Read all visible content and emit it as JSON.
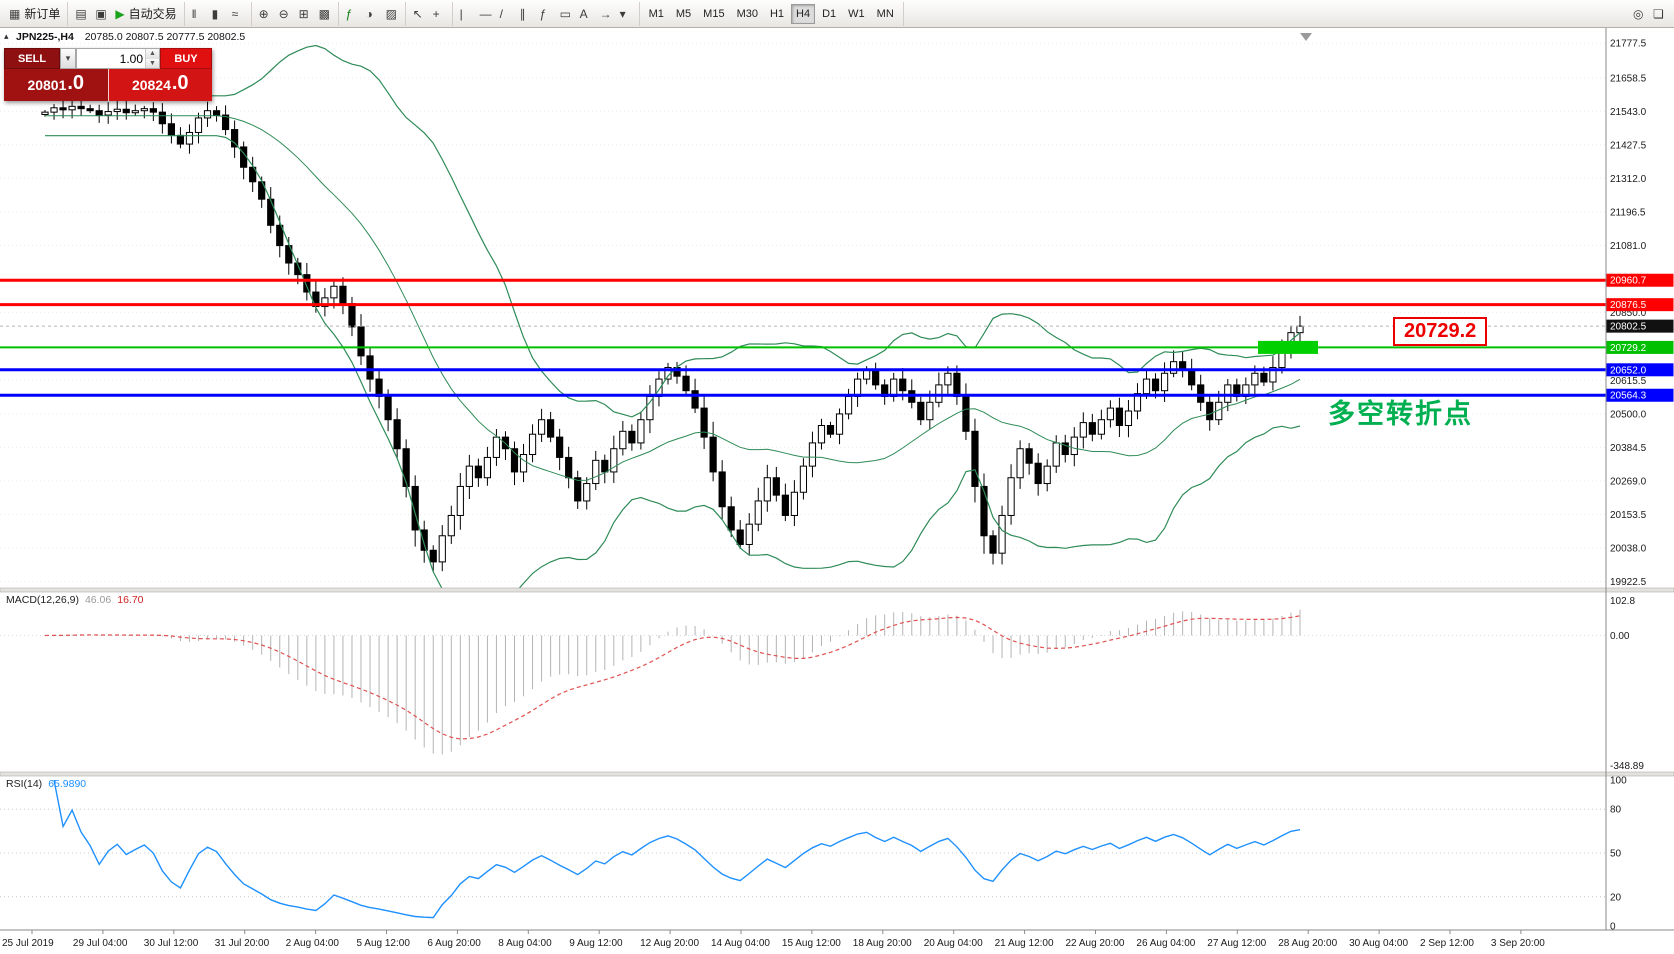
{
  "toolbar": {
    "groups": [
      {
        "name": "order-group",
        "items": [
          {
            "name": "new-order-button",
            "glyph": "▦",
            "label": "新订单"
          }
        ]
      },
      {
        "name": "app-group",
        "items": [
          {
            "name": "charts-icon",
            "glyph": "▤"
          },
          {
            "name": "profiles-icon",
            "glyph": "▣"
          },
          {
            "name": "autotrading-button",
            "glyph": "▶",
            "glyph_color": "#1aa31a",
            "label": "自动交易"
          }
        ]
      },
      {
        "name": "chart-type-group",
        "items": [
          {
            "name": "bar-chart-icon",
            "glyph": "‖"
          },
          {
            "name": "candlestick-chart-icon",
            "glyph": "▮"
          },
          {
            "name": "line-chart-icon",
            "glyph": "≈"
          }
        ]
      },
      {
        "name": "zoom-group",
        "items": [
          {
            "name": "zoom-in-icon",
            "glyph": "⊕"
          },
          {
            "name": "zoom-out-icon",
            "glyph": "⊖"
          },
          {
            "name": "tile-windows-icon",
            "glyph": "⊞"
          },
          {
            "name": "auto-arrange-icon",
            "glyph": "▩"
          }
        ]
      },
      {
        "name": "insert-group",
        "items": [
          {
            "name": "indicators-icon",
            "glyph": "ƒ",
            "glyph_color": "#0a7d0a"
          },
          {
            "name": "periods-icon",
            "glyph": "◑"
          },
          {
            "name": "templates-icon",
            "glyph": "▨"
          }
        ]
      },
      {
        "name": "cursor-group",
        "items": [
          {
            "name": "cursor-icon",
            "glyph": "↖"
          },
          {
            "name": "crosshair-icon",
            "glyph": "+"
          }
        ]
      },
      {
        "name": "draw-group",
        "items": [
          {
            "name": "vertical-line-icon",
            "glyph": "|"
          },
          {
            "name": "horizontal-line-icon",
            "glyph": "—"
          },
          {
            "name": "trendline-icon",
            "glyph": "/"
          },
          {
            "name": "channel-icon",
            "glyph": "∥"
          },
          {
            "name": "fibonacci-icon",
            "glyph": "ƒ"
          },
          {
            "name": "shapes-icon",
            "glyph": "▭"
          },
          {
            "name": "text-icon",
            "glyph": "A"
          },
          {
            "name": "arrow-tools-icon",
            "glyph": "→"
          },
          {
            "name": "more-tools-icon",
            "glyph": "▾"
          }
        ]
      }
    ],
    "timeframes": [
      "M1",
      "M5",
      "M15",
      "M30",
      "H1",
      "H4",
      "D1",
      "W1",
      "MN"
    ],
    "active_timeframe": "H4",
    "right_icons": [
      {
        "name": "search-icon",
        "glyph": "◎"
      },
      {
        "name": "chat-icon",
        "glyph": "❏"
      }
    ]
  },
  "trade_panel": {
    "sell_label": "SELL",
    "buy_label": "BUY",
    "volume": "1.00",
    "sell_price_main": "20801",
    "sell_price_sup": ".0",
    "buy_price_main": "20824",
    "buy_price_sup": ".0"
  },
  "chart": {
    "symbol": "JPN225-,H4",
    "ohlc": "20785.0 20807.5 20777.5 20802.5",
    "annotation": "多空转折点",
    "callout_label": "20729.2",
    "price_range": [
      19900,
      21830
    ],
    "axis_labels": [
      "21777.5",
      "21658.5",
      "21543.0",
      "21427.5",
      "21312.0",
      "21196.5",
      "21081.0",
      "20850.0",
      "20615.5",
      "20500.0",
      "20384.5",
      "20269.0",
      "20153.5",
      "20038.0",
      "19922.5"
    ],
    "levels": [
      {
        "price": 20960.7,
        "label": "20960.7",
        "color": "#ff0000",
        "width": 3
      },
      {
        "price": 20876.5,
        "label": "20876.5",
        "color": "#ff0000",
        "width": 3
      },
      {
        "price": 20729.2,
        "label": "20729.2",
        "color": "#00c000",
        "width": 2
      },
      {
        "price": 20652.0,
        "label": "20652.0",
        "color": "#0000ff",
        "width": 3
      },
      {
        "price": 20564.3,
        "label": "20564.3",
        "color": "#0000ff",
        "width": 3
      }
    ],
    "current_price": {
      "value": 20802.5,
      "label": "20802.5",
      "badge_color": "#111111"
    },
    "highlight_rect": {
      "price": 20729.2,
      "color": "#00d000"
    }
  },
  "macd_panel": {
    "label": "MACD(12,26,9)",
    "value_main": "46.06",
    "value_signal": "16.70",
    "axis_top": "102.8",
    "axis_zero": "0.00",
    "axis_bottom": "-348.89"
  },
  "rsi_panel": {
    "label": "RSI(14)",
    "value": "65.9890",
    "axis_labels": [
      "100",
      "80",
      "50",
      "20",
      "0"
    ],
    "levels": [
      80,
      50,
      20
    ]
  },
  "chart_data": {
    "type": "candlestick",
    "title": "JPN225-,H4",
    "ylim": [
      19922.5,
      21777.5
    ],
    "indicators": {
      "bollinger_period": 20,
      "bollinger_deviation": 2,
      "macd": [
        12,
        26,
        9
      ],
      "rsi": 14
    },
    "x_labels": [
      "25 Jul 2019",
      "29 Jul 04:00",
      "30 Jul 12:00",
      "31 Jul 20:00",
      "2 Aug 04:00",
      "5 Aug 12:00",
      "6 Aug 20:00",
      "8 Aug 04:00",
      "9 Aug 12:00",
      "12 Aug 20:00",
      "14 Aug 04:00",
      "15 Aug 12:00",
      "18 Aug 20:00",
      "20 Aug 04:00",
      "21 Aug 12:00",
      "22 Aug 20:00",
      "26 Aug 04:00",
      "27 Aug 12:00",
      "28 Aug 20:00",
      "30 Aug 04:00",
      "2 Sep 12:00",
      "3 Sep 20:00"
    ],
    "closes": [
      21540,
      21555,
      21548,
      21560,
      21552,
      21545,
      21530,
      21542,
      21550,
      21538,
      21545,
      21552,
      21540,
      21500,
      21460,
      21430,
      21470,
      21520,
      21545,
      21530,
      21480,
      21420,
      21350,
      21300,
      21240,
      21150,
      21080,
      21020,
      20980,
      20920,
      20870,
      20900,
      20940,
      20880,
      20800,
      20700,
      20620,
      20560,
      20480,
      20380,
      20250,
      20100,
      20030,
      19990,
      20080,
      20150,
      20250,
      20320,
      20280,
      20350,
      20420,
      20380,
      20300,
      20360,
      20430,
      20480,
      20420,
      20350,
      20280,
      20200,
      20260,
      20340,
      20300,
      20380,
      20440,
      20400,
      20480,
      20560,
      20620,
      20660,
      20630,
      20580,
      20520,
      20420,
      20300,
      20180,
      20100,
      20050,
      20120,
      20200,
      20280,
      20220,
      20150,
      20230,
      20320,
      20400,
      20460,
      20430,
      20500,
      20560,
      20620,
      20650,
      20600,
      20560,
      20620,
      20580,
      20540,
      20480,
      20540,
      20600,
      20640,
      20560,
      20440,
      20250,
      20080,
      20020,
      20150,
      20280,
      20380,
      20330,
      20260,
      20320,
      20400,
      20360,
      20420,
      20470,
      20430,
      20480,
      20520,
      20460,
      20510,
      20570,
      20620,
      20580,
      20640,
      20680,
      20650,
      20600,
      20540,
      20480,
      20540,
      20600,
      20560,
      20600,
      20640,
      20610,
      20660,
      20720,
      20780,
      20802.5
    ]
  }
}
